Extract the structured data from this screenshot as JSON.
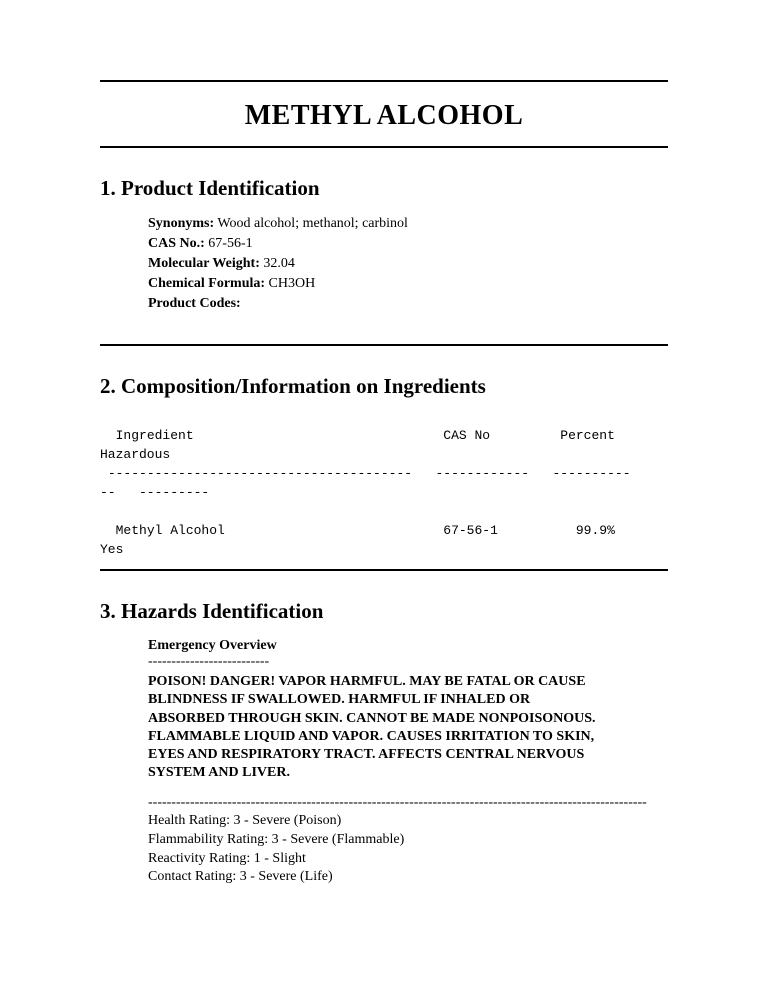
{
  "document": {
    "title": "METHYL ALCOHOL",
    "background_color": "#ffffff",
    "text_color": "#000000",
    "rule_color": "#000000"
  },
  "section1": {
    "heading": "1. Product Identification",
    "fields": {
      "synonyms_label": "Synonyms:",
      "synonyms_value": " Wood alcohol; methanol; carbinol",
      "cas_label": "CAS No.:",
      "cas_value": " 67-56-1",
      "mw_label": "Molecular Weight:",
      "mw_value": " 32.04",
      "formula_label": "Chemical Formula:",
      "formula_value": " CH3OH",
      "codes_label": "Product Codes:",
      "codes_value": ""
    }
  },
  "section2": {
    "heading": "2. Composition/Information on Ingredients",
    "table_text": "  Ingredient                                CAS No         Percent        Hazardous\n ---------------------------------------   ------------   ----------     --   ---------\n\n  Methyl Alcohol                            67-56-1          99.9%        Yes"
  },
  "section3": {
    "heading": "3. Hazards Identification",
    "emergency_label": "Emergency Overview",
    "short_dashes": "--------------------------",
    "warning": "POISON! DANGER! VAPOR HARMFUL. MAY BE FATAL OR CAUSE BLINDNESS IF SWALLOWED. HARMFUL IF INHALED OR ABSORBED THROUGH SKIN. CANNOT BE MADE NONPOISONOUS. FLAMMABLE LIQUID AND VAPOR. CAUSES IRRITATION TO SKIN, EYES AND RESPIRATORY TRACT. AFFECTS CENTRAL NERVOUS SYSTEM AND LIVER.",
    "long_dashes": " -----------------------------------------------------------------------------------------------------------",
    "ratings": {
      "health": "Health Rating: 3 - Severe (Poison)",
      "flammability": "Flammability Rating: 3 - Severe (Flammable)",
      "reactivity": "Reactivity Rating: 1 - Slight",
      "contact": "Contact Rating: 3 - Severe (Life)"
    }
  }
}
